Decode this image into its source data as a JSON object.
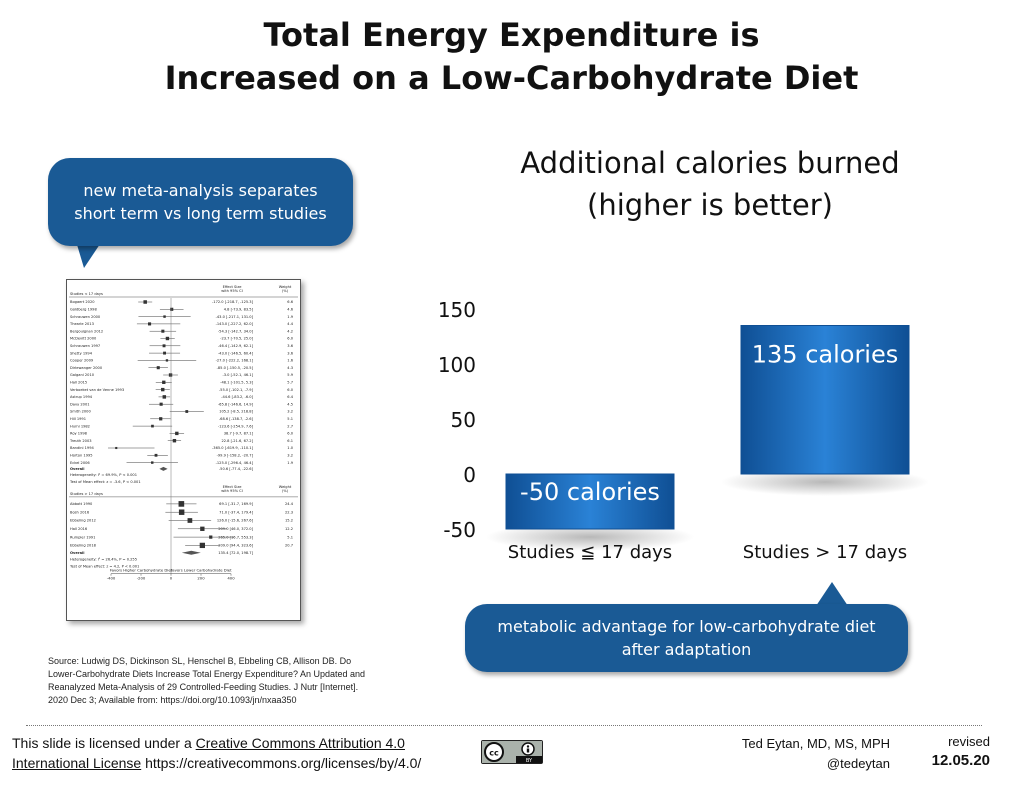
{
  "title": {
    "line1": "Total Energy Expenditure is",
    "line2": "Increased on a Low-Carbohydrate Diet"
  },
  "bubble_left": {
    "line1": "new meta-analysis separates",
    "line2": "short term vs long term studies"
  },
  "bubble_right": {
    "line1": "metabolic advantage for low-carbohydrate diet",
    "line2": "after adaptation"
  },
  "source": "Source:  Ludwig DS, Dickinson SL, Henschel B, Ebbeling CB, Allison DB. Do Lower-Carbohydrate Diets Increase Total Energy Expenditure? An Updated and Reanalyzed Meta-Analysis of 29 Controlled-Feeding Studies. J Nutr [Internet]. 2020 Dec 3; Available from: https://doi.org/10.1093/jn/nxaa350",
  "license": {
    "prefix": "This slide is licensed under a ",
    "link1": "Creative Commons Attribution 4.0",
    "link2": "International License",
    "url": " https://creativecommons.org/licenses/by/4.0/"
  },
  "cc_badge": {
    "icons": [
      "cc-icon",
      "by-icon"
    ],
    "text": "BY"
  },
  "author": {
    "name": "Ted Eytan, MD, MS, MPH",
    "handle": "@tedeytan"
  },
  "revised": {
    "label": "revised",
    "date": "12.05.20"
  },
  "colors": {
    "bar": "#1e6fbf",
    "bar_dark": "#0f4f94",
    "bubble": "#1a5a95"
  },
  "chart_data": {
    "type": "bar",
    "title": [
      "Additional calories burned",
      "(higher is better)"
    ],
    "categories": [
      "Studies ≦ 17 days",
      "Studies > 17 days"
    ],
    "values": [
      -50,
      135
    ],
    "data_labels": [
      "-50 calories",
      "135 calories"
    ],
    "yticks": [
      -50,
      0,
      50,
      100,
      150
    ],
    "ylim": [
      -50,
      150
    ],
    "grid": false,
    "legend": "none"
  },
  "forest_plot": {
    "short_header": "Studies < 17 days",
    "col_effect": [
      "Effect Size",
      "with 95% CI"
    ],
    "col_weight": [
      "Weight",
      "(%)"
    ],
    "short_studies": [
      {
        "name": "Bogaert 2020",
        "est": -172.0,
        "ci": "[-218.7, -125.3]",
        "w": "6.6"
      },
      {
        "name": "Goldberg 1998",
        "est": 4.8,
        "ci": "[-73.9, 83.5]",
        "w": "4.6"
      },
      {
        "name": "Schrauwen 2000",
        "est": -43.0,
        "ci": "[-217.1, 131.0]",
        "w": "1.9"
      },
      {
        "name": "Thearle 2013",
        "est": -143.0,
        "ci": "[-227.2, 62.0]",
        "w": "4.4"
      },
      {
        "name": "Bergouignan 2012",
        "est": -54.3,
        "ci": "[-142.7, 34.0]",
        "w": "4.2"
      },
      {
        "name": "McDevitt 2000",
        "est": -23.7,
        "ci": "[-70.5, 25.0]",
        "w": "6.0"
      },
      {
        "name": "Schrauwen 1997",
        "est": -46.4,
        "ci": "[-142.9, 62.1]",
        "w": "3.6"
      },
      {
        "name": "Shetty 1994",
        "est": -43.0,
        "ci": "[-146.5, 60.4]",
        "w": "3.6"
      },
      {
        "name": "Cooper 2009",
        "est": -27.0,
        "ci": "[-222.2, 168.1]",
        "w": "1.6"
      },
      {
        "name": "Dirlewanger 2000",
        "est": -85.0,
        "ci": "[-150.5, -20.5]",
        "w": "4.3"
      },
      {
        "name": "Galgani 2010",
        "est": -3.0,
        "ci": "[-52.1, 46.1]",
        "w": "5.9"
      },
      {
        "name": "Hall 2015",
        "est": -48.1,
        "ci": "[-101.5, 5.3]",
        "w": "5.7"
      },
      {
        "name": "Verboeket van de Venne 1993",
        "est": -55.0,
        "ci": "[-102.1, -7.9]",
        "w": "6.0"
      },
      {
        "name": "Astrup 1994",
        "est": -44.6,
        "ci": "[-83.2, -6.0]",
        "w": "6.4"
      },
      {
        "name": "Davy 2001",
        "est": -65.8,
        "ci": "[-146.6, 14.9]",
        "w": "4.5"
      },
      {
        "name": "Smith 2000",
        "est": 105.2,
        "ci": "[-8.5, 218.8]",
        "w": "3.2"
      },
      {
        "name": "Hill 1991",
        "est": -68.6,
        "ci": "[-138.7, -2.6]",
        "w": "5.1"
      },
      {
        "name": "Hurni 1982",
        "est": -123.6,
        "ci": "[-254.9, 7.6]",
        "w": "2.7"
      },
      {
        "name": "Roy 1998",
        "est": 38.7,
        "ci": "[-9.7, 87.1]",
        "w": "6.0"
      },
      {
        "name": "Treuth 2003",
        "est": 22.8,
        "ci": "[-21.6, 67.2]",
        "w": "6.1"
      },
      {
        "name": "Bandini 1994",
        "est": -365.0,
        "ci": "[-619.9, -110.1]",
        "w": "1.0"
      },
      {
        "name": "Horton 1995",
        "est": -99.9,
        "ci": "[-158.2, -20.7]",
        "w": "3.2"
      },
      {
        "name": "Eckel 2006",
        "est": -125.0,
        "ci": "[-296.4, 46.4]",
        "w": "1.9"
      }
    ],
    "short_overall": {
      "name": "Overall",
      "est": -50.6,
      "ci": "[-77.4, -22.6]"
    },
    "short_het": "Heterogeneity: I² = 69.9%, P < 0.001",
    "short_test": "Test of Mean effect: z = -3.6, P < 0.001",
    "long_header": "Studies > 17 days",
    "long_studies": [
      {
        "name": "Abbott 1990",
        "est": 69.1,
        "ci": "[-31.7, 169.9]",
        "w": "24.4"
      },
      {
        "name": "Bosh 2016",
        "est": 71.0,
        "ci": "[-37.4, 179.4]",
        "w": "22.3"
      },
      {
        "name": "Ebbeling 2012",
        "est": 126.0,
        "ci": "[-15.6, 267.6]",
        "w": "15.2"
      },
      {
        "name": "Hall 2016",
        "est": 209.0,
        "ci": "[46.0, 372.0]",
        "w": "12.2"
      },
      {
        "name": "Rumpler 1991",
        "est": 265.0,
        "ci": "[16.7, 553.3]",
        "w": "5.1"
      },
      {
        "name": "Ebbeling 2018",
        "est": 209.0,
        "ci": "[94.4, 323.6]",
        "w": "20.7"
      }
    ],
    "long_overall": {
      "name": "Overall",
      "est": 135.4,
      "ci": "[72.0, 198.7]"
    },
    "long_het": "Heterogeneity: I² = 26.4%, P = 0.255",
    "long_test": "Test of Mean effect: z = 4.2, P < 0.001",
    "favors_left": "Favors Higher Carbohydrate Diet",
    "favors_right": "Favors Lower Carbohydrate Diet",
    "axis_ticks": [
      -400,
      -200,
      0,
      200,
      400
    ]
  }
}
